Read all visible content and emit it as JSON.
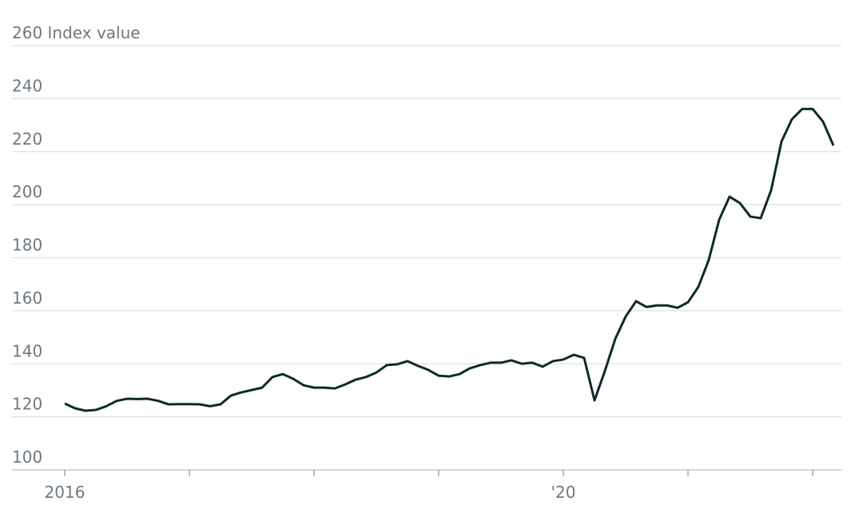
{
  "chart_data": {
    "type": "line",
    "categories": [
      "2016",
      null,
      null,
      null,
      null,
      null,
      null,
      null,
      null,
      null,
      null,
      null,
      null,
      null,
      null,
      null,
      null,
      null,
      null,
      null,
      null,
      null,
      null,
      null,
      null,
      null,
      null,
      null,
      null,
      null,
      null,
      null,
      null,
      null,
      null,
      null,
      null,
      null,
      null,
      null,
      null,
      null,
      null,
      null,
      null,
      null,
      null,
      null,
      "'20",
      null,
      null,
      null,
      null,
      null,
      null,
      null,
      null,
      null,
      null,
      null,
      null,
      null,
      null,
      null,
      null,
      null,
      null,
      null,
      null,
      null,
      null,
      null,
      null,
      null,
      null
    ],
    "series": [
      {
        "name": "Index value",
        "color": "#0f2a2c",
        "values": [
          125,
          123.2,
          122.3,
          122.6,
          124,
          126,
          126.8,
          126.7,
          126.8,
          126,
          124.7,
          124.8,
          124.8,
          124.7,
          124,
          124.7,
          128,
          129.2,
          130.1,
          131,
          135,
          136.1,
          134.3,
          131.9,
          131,
          131,
          130.7,
          132.2,
          134,
          135,
          136.7,
          139.5,
          139.8,
          141,
          139.2,
          137.7,
          135.5,
          135.2,
          136.1,
          138.3,
          139.5,
          140.4,
          140.4,
          141.3,
          140,
          140.4,
          138.9,
          141,
          141.6,
          143.4,
          142.2,
          126.2,
          137.3,
          149.4,
          157.8,
          163.6,
          161.4,
          162,
          162,
          161.1,
          163.2,
          169,
          179.2,
          194.3,
          203,
          200.6,
          195.5,
          194.9,
          205.4,
          223.8,
          232.2,
          236.1,
          236.1,
          231.3,
          222.3
        ]
      }
    ],
    "ylim": [
      100,
      260
    ],
    "yticks": [
      100,
      120,
      140,
      160,
      180,
      200,
      220,
      240,
      {
        "value": 260,
        "label": "260 Index value"
      }
    ],
    "grid": true
  }
}
